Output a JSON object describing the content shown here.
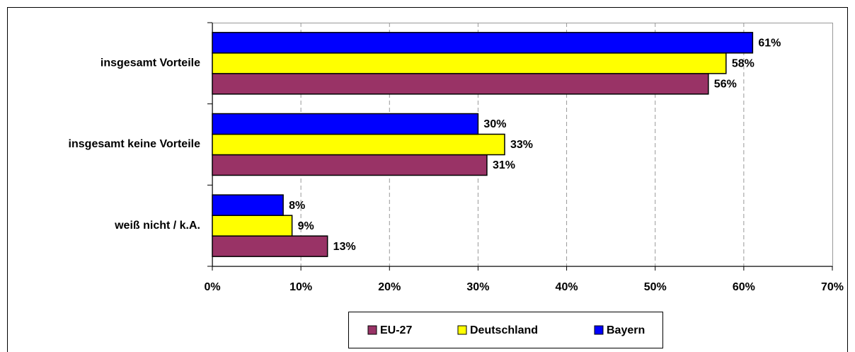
{
  "chart_data": {
    "type": "bar",
    "orientation": "horizontal",
    "categories": [
      "insgesamt Vorteile",
      "insgesamt keine Vorteile",
      "weiß nicht / k.A."
    ],
    "series": [
      {
        "name": "EU-27",
        "color": "#993366",
        "values": [
          56,
          31,
          13
        ],
        "value_labels": [
          "56%",
          "31%",
          "13%"
        ]
      },
      {
        "name": "Deutschland",
        "color": "#ffff00",
        "values": [
          58,
          33,
          9
        ],
        "value_labels": [
          "58%",
          "33%",
          "9%"
        ]
      },
      {
        "name": "Bayern",
        "color": "#0000ff",
        "values": [
          61,
          30,
          8
        ],
        "value_labels": [
          "61%",
          "30%",
          "8%"
        ]
      }
    ],
    "xlim": [
      0,
      70
    ],
    "xticks": [
      {
        "value": 0,
        "label": "0%"
      },
      {
        "value": 10,
        "label": "10%"
      },
      {
        "value": 20,
        "label": "20%"
      },
      {
        "value": 30,
        "label": "30%"
      },
      {
        "value": 40,
        "label": "40%"
      },
      {
        "value": 50,
        "label": "50%"
      },
      {
        "value": 60,
        "label": "60%"
      },
      {
        "value": 70,
        "label": "70%"
      }
    ],
    "grid": true,
    "legend": "bottom"
  }
}
